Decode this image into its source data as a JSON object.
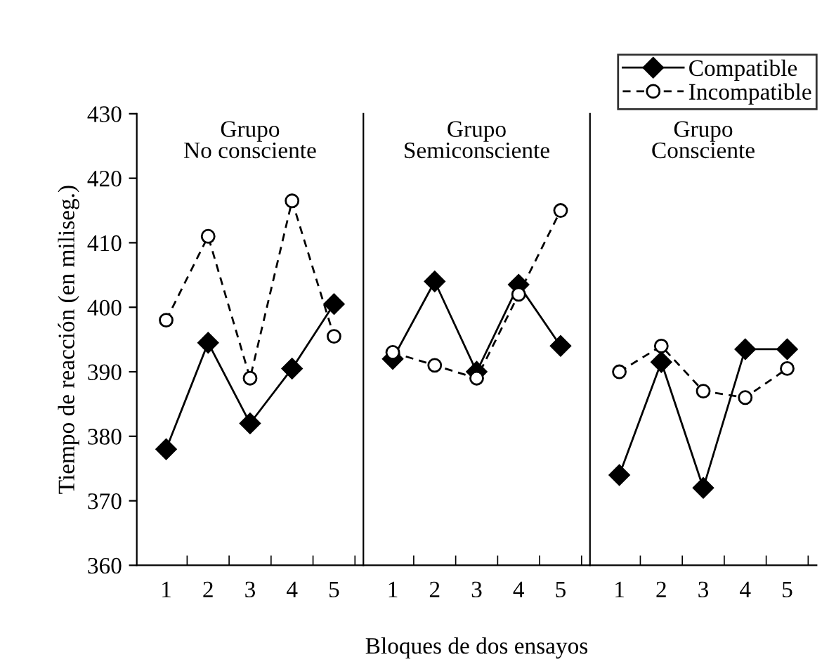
{
  "chart_data": [
    {
      "type": "line",
      "title": "Grupo\nNo consciente",
      "ylabel": "Tiempo de reacción (en miliseg.)",
      "categories": [
        "1",
        "2",
        "3",
        "4",
        "5"
      ],
      "ylim": [
        360,
        430
      ],
      "yticks": [
        360,
        370,
        380,
        390,
        400,
        410,
        420,
        430
      ],
      "grid": false,
      "series": [
        {
          "color": "#000000",
          "marker": "diamond",
          "line_style": "solid",
          "values": [
            378,
            394.5,
            382,
            390.5,
            400.5
          ]
        },
        {
          "color": "#000000",
          "marker": "circle",
          "line_style": "dashed",
          "values": [
            398,
            411,
            389,
            416.5,
            395.5
          ]
        }
      ]
    },
    {
      "type": "line",
      "title": "Grupo\nSemiconsciente",
      "xlabel": "Bloques de dos ensayos",
      "categories": [
        "1",
        "2",
        "3",
        "4",
        "5"
      ],
      "ylim": [
        360,
        430
      ],
      "tick_labels": "x",
      "grid": false,
      "series": [
        {
          "color": "#000000",
          "marker": "diamond",
          "line_style": "solid",
          "values": [
            392,
            404,
            390,
            403.5,
            394
          ]
        },
        {
          "color": "#000000",
          "marker": "circle",
          "line_style": "dashed",
          "values": [
            393,
            391,
            389,
            402,
            415
          ]
        }
      ]
    },
    {
      "type": "line",
      "title": "Grupo\nConsciente",
      "categories": [
        "1",
        "2",
        "3",
        "4",
        "5"
      ],
      "ylim": [
        360,
        430
      ],
      "tick_labels": "x",
      "grid": false,
      "legend": "top right",
      "series": [
        {
          "name": "Compatible",
          "color": "#000000",
          "marker": "diamond",
          "line_style": "solid",
          "values": [
            374,
            391.5,
            372,
            393.5,
            393.5
          ]
        },
        {
          "name": "Incompatible",
          "color": "#000000",
          "marker": "circle",
          "line_style": "dashed",
          "values": [
            390,
            394,
            387,
            386,
            390.5
          ]
        }
      ]
    }
  ]
}
